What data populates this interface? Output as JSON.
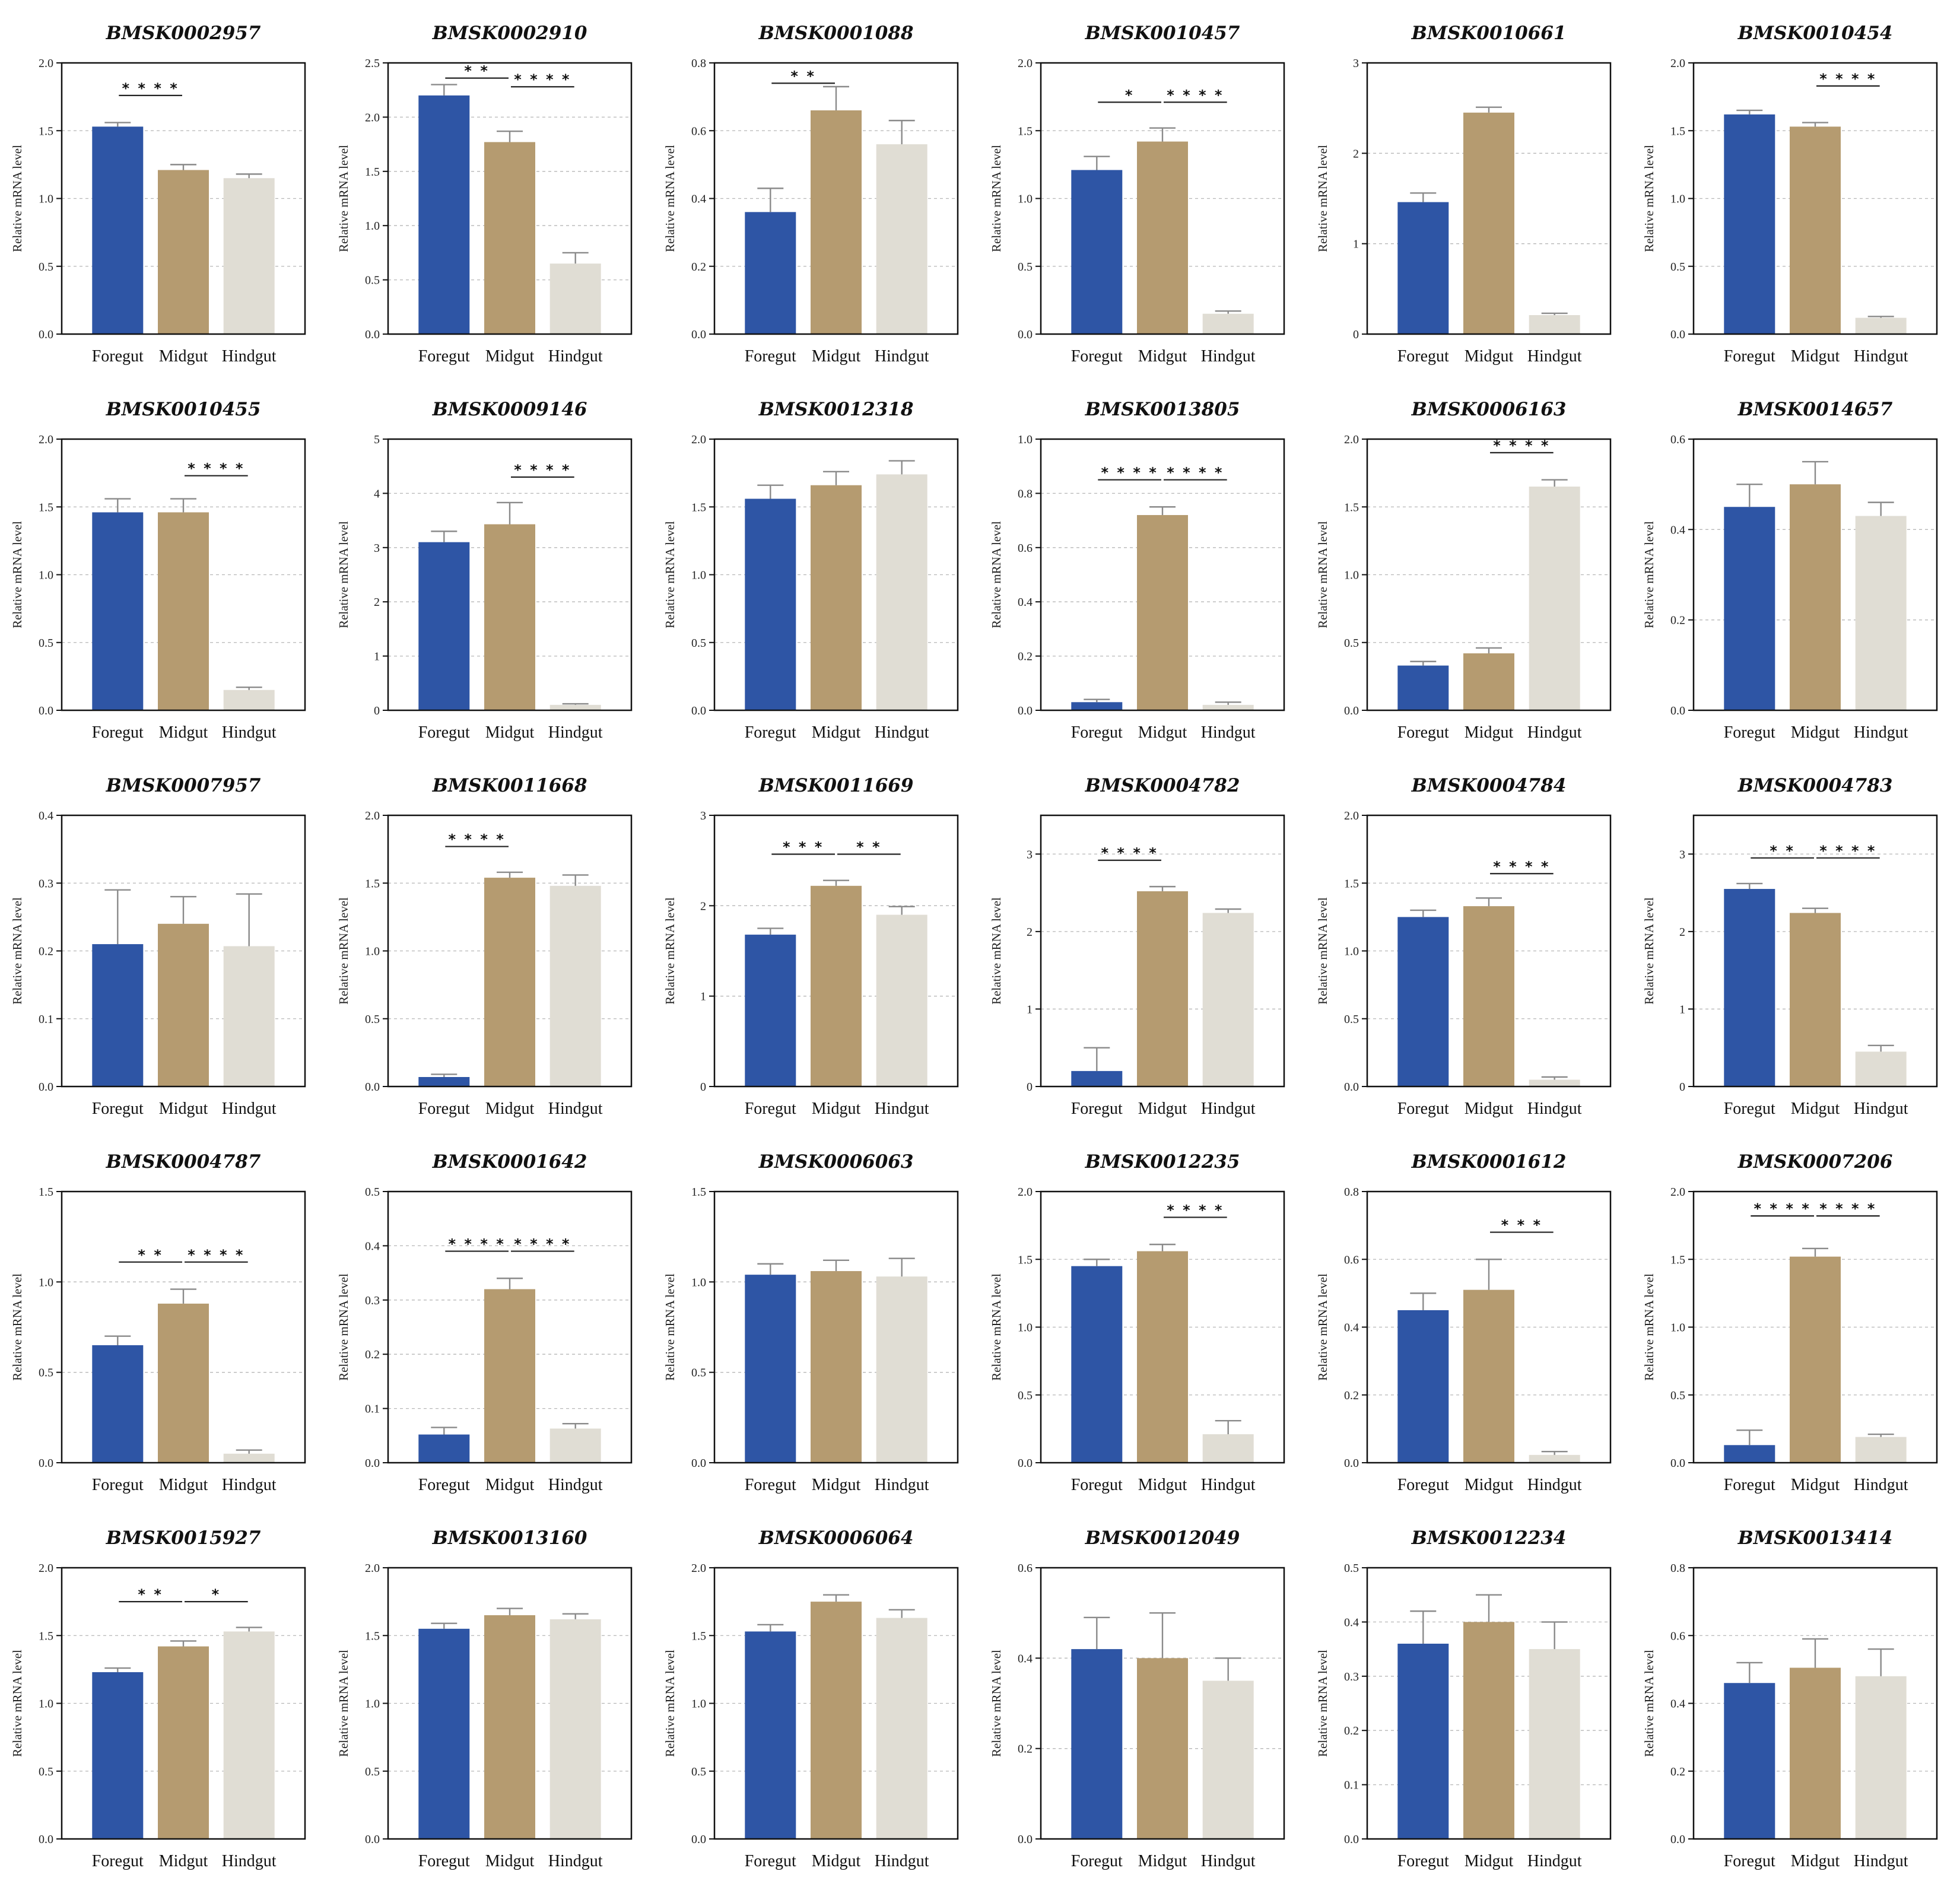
{
  "figure": {
    "ylabel": "Relative mRNA  level",
    "categories": [
      "Foregut",
      "Midgut",
      "Hindgut"
    ],
    "colors": [
      "#2e55a5",
      "#b59b70",
      "#e0ddd4"
    ]
  },
  "chart_data": [
    {
      "type": "bar",
      "title": "BMSK0002957",
      "ylabel": "Relative mRNA  level",
      "categories": [
        "Foregut",
        "Midgut",
        "Hindgut"
      ],
      "ylim": [
        0,
        2
      ],
      "yticks": [
        "0.0",
        "0.5",
        "1.0",
        "1.5",
        "2.0"
      ],
      "values": [
        1.53,
        1.21,
        1.15
      ],
      "errors": [
        0.03,
        0.04,
        0.03
      ],
      "significance": [
        {
          "from": 0,
          "to": 1,
          "label": "****",
          "y": 1.76
        }
      ]
    },
    {
      "type": "bar",
      "title": "BMSK0002910",
      "ylabel": "Relative mRNA  level",
      "categories": [
        "Foregut",
        "Midgut",
        "Hindgut"
      ],
      "ylim": [
        0,
        2.5
      ],
      "yticks": [
        "0.0",
        "0.5",
        "1.0",
        "1.5",
        "2.0",
        "2.5"
      ],
      "values": [
        2.2,
        1.77,
        0.65
      ],
      "errors": [
        0.1,
        0.1,
        0.1
      ],
      "significance": [
        {
          "from": 0,
          "to": 1,
          "label": "**",
          "y": 2.36
        },
        {
          "from": 1,
          "to": 2,
          "label": "****",
          "y": 2.28
        }
      ]
    },
    {
      "type": "bar",
      "title": "BMSK0001088",
      "ylabel": "Relative mRNA  level",
      "categories": [
        "Foregut",
        "Midgut",
        "Hindgut"
      ],
      "ylim": [
        0,
        0.8
      ],
      "yticks": [
        "0.0",
        "0.2",
        "0.4",
        "0.6",
        "0.8"
      ],
      "values": [
        0.36,
        0.66,
        0.56
      ],
      "errors": [
        0.07,
        0.07,
        0.07
      ],
      "significance": [
        {
          "from": 0,
          "to": 1,
          "label": "**",
          "y": 0.74
        }
      ]
    },
    {
      "type": "bar",
      "title": "BMSK0010457",
      "ylabel": "Relative mRNA  level",
      "categories": [
        "Foregut",
        "Midgut",
        "Hindgut"
      ],
      "ylim": [
        0,
        2
      ],
      "yticks": [
        "0.0",
        "0.5",
        "1.0",
        "1.5",
        "2.0"
      ],
      "values": [
        1.21,
        1.42,
        0.15
      ],
      "errors": [
        0.1,
        0.1,
        0.02
      ],
      "significance": [
        {
          "from": 0,
          "to": 1,
          "label": "*",
          "y": 1.71
        },
        {
          "from": 1,
          "to": 2,
          "label": "****",
          "y": 1.71
        }
      ]
    },
    {
      "type": "bar",
      "title": "BMSK0010661",
      "ylabel": "Relative mRNA  level",
      "categories": [
        "Foregut",
        "Midgut",
        "Hindgut"
      ],
      "ylim": [
        0,
        3
      ],
      "yticks": [
        "0",
        "1",
        "2",
        "3"
      ],
      "values": [
        1.46,
        2.45,
        0.21
      ],
      "errors": [
        0.1,
        0.06,
        0.02
      ],
      "significance": []
    },
    {
      "type": "bar",
      "title": "BMSK0010454",
      "ylabel": "Relative mRNA  level",
      "categories": [
        "Foregut",
        "Midgut",
        "Hindgut"
      ],
      "ylim": [
        0,
        2
      ],
      "yticks": [
        "0.0",
        "0.5",
        "1.0",
        "1.5",
        "2.0"
      ],
      "values": [
        1.62,
        1.53,
        0.12
      ],
      "errors": [
        0.03,
        0.03,
        0.01
      ],
      "significance": [
        {
          "from": 1,
          "to": 2,
          "label": "****",
          "y": 1.83
        }
      ]
    },
    {
      "type": "bar",
      "title": "BMSK0010455",
      "ylabel": "Relative mRNA  level",
      "categories": [
        "Foregut",
        "Midgut",
        "Hindgut"
      ],
      "ylim": [
        0,
        2
      ],
      "yticks": [
        "0.0",
        "0.5",
        "1.0",
        "1.5",
        "2.0"
      ],
      "values": [
        1.46,
        1.46,
        0.15
      ],
      "errors": [
        0.1,
        0.1,
        0.02
      ],
      "significance": [
        {
          "from": 1,
          "to": 2,
          "label": "****",
          "y": 1.73
        }
      ]
    },
    {
      "type": "bar",
      "title": "BMSK0009146",
      "ylabel": "Relative mRNA  level",
      "categories": [
        "Foregut",
        "Midgut",
        "Hindgut"
      ],
      "ylim": [
        0,
        5
      ],
      "yticks": [
        "0",
        "1",
        "2",
        "3",
        "4",
        "5"
      ],
      "values": [
        3.1,
        3.43,
        0.1
      ],
      "errors": [
        0.2,
        0.4,
        0.02
      ],
      "significance": [
        {
          "from": 1,
          "to": 2,
          "label": "****",
          "y": 4.3
        }
      ]
    },
    {
      "type": "bar",
      "title": "BMSK0012318",
      "ylabel": "Relative mRNA  level",
      "categories": [
        "Foregut",
        "Midgut",
        "Hindgut"
      ],
      "ylim": [
        0,
        2
      ],
      "yticks": [
        "0.0",
        "0.5",
        "1.0",
        "1.5",
        "2.0"
      ],
      "values": [
        1.56,
        1.66,
        1.74
      ],
      "errors": [
        0.1,
        0.1,
        0.1
      ],
      "significance": []
    },
    {
      "type": "bar",
      "title": "BMSK0013805",
      "ylabel": "Relative mRNA  level",
      "categories": [
        "Foregut",
        "Midgut",
        "Hindgut"
      ],
      "ylim": [
        0,
        1
      ],
      "yticks": [
        "0.0",
        "0.2",
        "0.4",
        "0.6",
        "0.8",
        "1.0"
      ],
      "values": [
        0.03,
        0.72,
        0.02
      ],
      "errors": [
        0.01,
        0.03,
        0.01
      ],
      "significance": [
        {
          "from": 0,
          "to": 1,
          "label": "****",
          "y": 0.85
        },
        {
          "from": 1,
          "to": 2,
          "label": "****",
          "y": 0.85
        }
      ]
    },
    {
      "type": "bar",
      "title": "BMSK0006163",
      "ylabel": "Relative mRNA  level",
      "categories": [
        "Foregut",
        "Midgut",
        "Hindgut"
      ],
      "ylim": [
        0,
        2
      ],
      "yticks": [
        "0.0",
        "0.5",
        "1.0",
        "1.5",
        "2.0"
      ],
      "values": [
        0.33,
        0.42,
        1.65
      ],
      "errors": [
        0.03,
        0.04,
        0.05
      ],
      "significance": [
        {
          "from": 1,
          "to": 2,
          "label": "****",
          "y": 1.9
        }
      ]
    },
    {
      "type": "bar",
      "title": "BMSK0014657",
      "ylabel": "Relative mRNA  level",
      "categories": [
        "Foregut",
        "Midgut",
        "Hindgut"
      ],
      "ylim": [
        0,
        0.6
      ],
      "yticks": [
        "0.0",
        "0.2",
        "0.4",
        "0.6"
      ],
      "values": [
        0.45,
        0.5,
        0.43
      ],
      "errors": [
        0.05,
        0.05,
        0.03
      ],
      "significance": []
    },
    {
      "type": "bar",
      "title": "BMSK0007957",
      "ylabel": "Relative mRNA  level",
      "categories": [
        "Foregut",
        "Midgut",
        "Hindgut"
      ],
      "ylim": [
        0,
        0.4
      ],
      "yticks": [
        "0.0",
        "0.1",
        "0.2",
        "0.3",
        "0.4"
      ],
      "values": [
        0.21,
        0.24,
        0.207
      ],
      "errors": [
        0.08,
        0.04,
        0.077
      ],
      "significance": []
    },
    {
      "type": "bar",
      "title": "BMSK0011668",
      "ylabel": "Relative mRNA  level",
      "categories": [
        "Foregut",
        "Midgut",
        "Hindgut"
      ],
      "ylim": [
        0,
        2
      ],
      "yticks": [
        "0.0",
        "0.5",
        "1.0",
        "1.5",
        "2.0"
      ],
      "values": [
        0.07,
        1.54,
        1.48
      ],
      "errors": [
        0.02,
        0.04,
        0.08
      ],
      "significance": [
        {
          "from": 0,
          "to": 1,
          "label": "****",
          "y": 1.77
        }
      ]
    },
    {
      "type": "bar",
      "title": "BMSK0011669",
      "ylabel": "Relative mRNA  level",
      "categories": [
        "Foregut",
        "Midgut",
        "Hindgut"
      ],
      "ylim": [
        0,
        3
      ],
      "yticks": [
        "0",
        "1",
        "2",
        "3"
      ],
      "values": [
        1.68,
        2.22,
        1.9
      ],
      "errors": [
        0.07,
        0.06,
        0.09
      ],
      "significance": [
        {
          "from": 0,
          "to": 1,
          "label": "***",
          "y": 2.57
        },
        {
          "from": 1,
          "to": 2,
          "label": "**",
          "y": 2.57
        }
      ]
    },
    {
      "type": "bar",
      "title": "BMSK0004782",
      "ylabel": "Relative mRNA  level",
      "categories": [
        "Foregut",
        "Midgut",
        "Hindgut"
      ],
      "ylim": [
        0,
        3.5
      ],
      "yticks": [
        "0",
        "1",
        "2",
        "3"
      ],
      "values": [
        0.2,
        2.52,
        2.24
      ],
      "errors": [
        0.3,
        0.06,
        0.05
      ],
      "significance": [
        {
          "from": 0,
          "to": 1,
          "label": "****",
          "y": 2.92
        }
      ]
    },
    {
      "type": "bar",
      "title": "BMSK0004784",
      "ylabel": "Relative mRNA  level",
      "categories": [
        "Foregut",
        "Midgut",
        "Hindgut"
      ],
      "ylim": [
        0,
        2
      ],
      "yticks": [
        "0.0",
        "0.5",
        "1.0",
        "1.5",
        "2.0"
      ],
      "values": [
        1.25,
        1.33,
        0.05
      ],
      "errors": [
        0.05,
        0.06,
        0.02
      ],
      "significance": [
        {
          "from": 1,
          "to": 2,
          "label": "****",
          "y": 1.57
        }
      ]
    },
    {
      "type": "bar",
      "title": "BMSK0004783",
      "ylabel": "Relative mRNA  level",
      "categories": [
        "Foregut",
        "Midgut",
        "Hindgut"
      ],
      "ylim": [
        0,
        3.5
      ],
      "yticks": [
        "0",
        "1",
        "2",
        "3"
      ],
      "values": [
        2.55,
        2.24,
        0.45
      ],
      "errors": [
        0.07,
        0.06,
        0.08
      ],
      "significance": [
        {
          "from": 0,
          "to": 1,
          "label": "**",
          "y": 2.95
        },
        {
          "from": 1,
          "to": 2,
          "label": "****",
          "y": 2.95
        }
      ]
    },
    {
      "type": "bar",
      "title": "BMSK0004787",
      "ylabel": "Relative mRNA  level",
      "categories": [
        "Foregut",
        "Midgut",
        "Hindgut"
      ],
      "ylim": [
        0,
        1.5
      ],
      "yticks": [
        "0.0",
        "0.5",
        "1.0",
        "1.5"
      ],
      "values": [
        0.65,
        0.88,
        0.05
      ],
      "errors": [
        0.05,
        0.08,
        0.02
      ],
      "significance": [
        {
          "from": 0,
          "to": 1,
          "label": "**",
          "y": 1.11
        },
        {
          "from": 1,
          "to": 2,
          "label": "****",
          "y": 1.11
        }
      ]
    },
    {
      "type": "bar",
      "title": "BMSK0001642",
      "ylabel": "Relative mRNA  level",
      "categories": [
        "Foregut",
        "Midgut",
        "Hindgut"
      ],
      "ylim": [
        0,
        0.5
      ],
      "yticks": [
        "0.0",
        "0.1",
        "0.2",
        "0.3",
        "0.4",
        "0.5"
      ],
      "values": [
        0.052,
        0.32,
        0.063
      ],
      "errors": [
        0.013,
        0.02,
        0.009
      ],
      "significance": [
        {
          "from": 0,
          "to": 1,
          "label": "****",
          "y": 0.39
        },
        {
          "from": 1,
          "to": 2,
          "label": "****",
          "y": 0.39
        }
      ]
    },
    {
      "type": "bar",
      "title": "BMSK0006063",
      "ylabel": "Relative mRNA  level",
      "categories": [
        "Foregut",
        "Midgut",
        "Hindgut"
      ],
      "ylim": [
        0,
        1.5
      ],
      "yticks": [
        "0.0",
        "0.5",
        "1.0",
        "1.5"
      ],
      "values": [
        1.04,
        1.06,
        1.03
      ],
      "errors": [
        0.06,
        0.06,
        0.1
      ],
      "significance": []
    },
    {
      "type": "bar",
      "title": "BMSK0012235",
      "ylabel": "Relative mRNA  level",
      "categories": [
        "Foregut",
        "Midgut",
        "Hindgut"
      ],
      "ylim": [
        0,
        2
      ],
      "yticks": [
        "0.0",
        "0.5",
        "1.0",
        "1.5",
        "2.0"
      ],
      "values": [
        1.45,
        1.56,
        0.21
      ],
      "errors": [
        0.05,
        0.05,
        0.1
      ],
      "significance": [
        {
          "from": 1,
          "to": 2,
          "label": "****",
          "y": 1.81
        }
      ]
    },
    {
      "type": "bar",
      "title": "BMSK0001612",
      "ylabel": "Relative mRNA  level",
      "categories": [
        "Foregut",
        "Midgut",
        "Hindgut"
      ],
      "ylim": [
        0,
        0.8
      ],
      "yticks": [
        "0.0",
        "0.2",
        "0.4",
        "0.6",
        "0.8"
      ],
      "values": [
        0.45,
        0.51,
        0.023
      ],
      "errors": [
        0.05,
        0.09,
        0.01
      ],
      "significance": [
        {
          "from": 1,
          "to": 2,
          "label": "***",
          "y": 0.68
        }
      ]
    },
    {
      "type": "bar",
      "title": "BMSK0007206",
      "ylabel": "Relative mRNA  level",
      "categories": [
        "Foregut",
        "Midgut",
        "Hindgut"
      ],
      "ylim": [
        0,
        2
      ],
      "yticks": [
        "0.0",
        "0.5",
        "1.0",
        "1.5",
        "2.0"
      ],
      "values": [
        0.13,
        1.52,
        0.19
      ],
      "errors": [
        0.11,
        0.06,
        0.02
      ],
      "significance": [
        {
          "from": 0,
          "to": 1,
          "label": "****",
          "y": 1.82
        },
        {
          "from": 1,
          "to": 2,
          "label": "****",
          "y": 1.82
        }
      ]
    },
    {
      "type": "bar",
      "title": "BMSK0015927",
      "ylabel": "Relative mRNA  level",
      "categories": [
        "Foregut",
        "Midgut",
        "Hindgut"
      ],
      "ylim": [
        0,
        2
      ],
      "yticks": [
        "0.0",
        "0.5",
        "1.0",
        "1.5",
        "2.0"
      ],
      "values": [
        1.23,
        1.42,
        1.53
      ],
      "errors": [
        0.03,
        0.04,
        0.03
      ],
      "significance": [
        {
          "from": 0,
          "to": 1,
          "label": "**",
          "y": 1.75
        },
        {
          "from": 1,
          "to": 2,
          "label": "*",
          "y": 1.75
        }
      ]
    },
    {
      "type": "bar",
      "title": "BMSK0013160",
      "ylabel": "Relative mRNA  level",
      "categories": [
        "Foregut",
        "Midgut",
        "Hindgut"
      ],
      "ylim": [
        0,
        2
      ],
      "yticks": [
        "0.0",
        "0.5",
        "1.0",
        "1.5",
        "2.0"
      ],
      "values": [
        1.55,
        1.65,
        1.62
      ],
      "errors": [
        0.04,
        0.05,
        0.04
      ],
      "significance": []
    },
    {
      "type": "bar",
      "title": "BMSK0006064",
      "ylabel": "Relative mRNA  level",
      "categories": [
        "Foregut",
        "Midgut",
        "Hindgut"
      ],
      "ylim": [
        0,
        2
      ],
      "yticks": [
        "0.0",
        "0.5",
        "1.0",
        "1.5",
        "2.0"
      ],
      "values": [
        1.53,
        1.75,
        1.63
      ],
      "errors": [
        0.05,
        0.05,
        0.06
      ],
      "significance": []
    },
    {
      "type": "bar",
      "title": "BMSK0012049",
      "ylabel": "Relative mRNA  level",
      "categories": [
        "Foregut",
        "Midgut",
        "Hindgut"
      ],
      "ylim": [
        0,
        0.6
      ],
      "yticks": [
        "0.0",
        "0.2",
        "0.4",
        "0.6"
      ],
      "values": [
        0.42,
        0.4,
        0.35
      ],
      "errors": [
        0.07,
        0.1,
        0.05
      ],
      "significance": []
    },
    {
      "type": "bar",
      "title": "BMSK0012234",
      "ylabel": "Relative mRNA  level",
      "categories": [
        "Foregut",
        "Midgut",
        "Hindgut"
      ],
      "ylim": [
        0,
        0.5
      ],
      "yticks": [
        "0.0",
        "0.1",
        "0.2",
        "0.3",
        "0.4",
        "0.5"
      ],
      "values": [
        0.36,
        0.4,
        0.35
      ],
      "errors": [
        0.06,
        0.05,
        0.05
      ],
      "significance": []
    },
    {
      "type": "bar",
      "title": "BMSK0013414",
      "ylabel": "Relative mRNA  level",
      "categories": [
        "Foregut",
        "Midgut",
        "Hindgut"
      ],
      "ylim": [
        0,
        0.8
      ],
      "yticks": [
        "0.0",
        "0.2",
        "0.4",
        "0.6",
        "0.8"
      ],
      "values": [
        0.46,
        0.505,
        0.48
      ],
      "errors": [
        0.06,
        0.085,
        0.08
      ],
      "significance": []
    }
  ]
}
